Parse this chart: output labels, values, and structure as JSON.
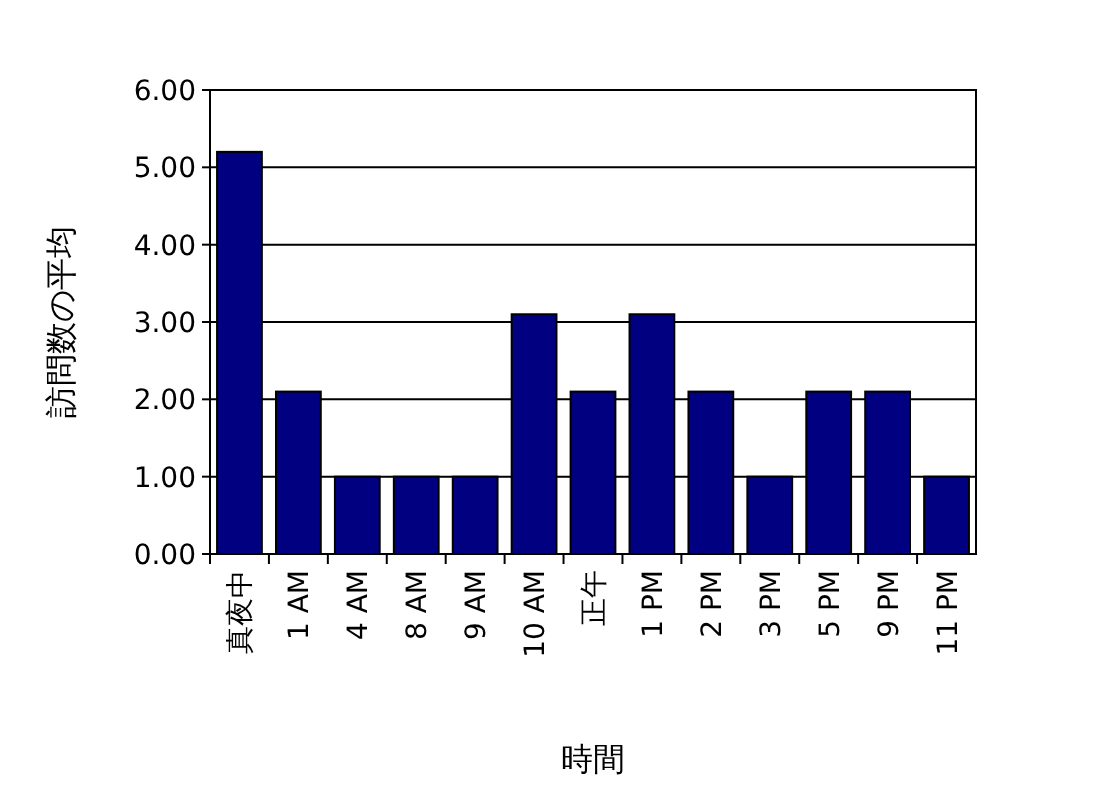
{
  "chart_data": {
    "type": "bar",
    "xlabel": "時間",
    "ylabel": "訪問数の平均",
    "categories": [
      "真夜中",
      "1 AM",
      "4 AM",
      "8 AM",
      "9 AM",
      "10 AM",
      "正午",
      "1 PM",
      "2 PM",
      "3 PM",
      "5 PM",
      "9 PM",
      "11 PM"
    ],
    "values": [
      5.2,
      2.1,
      1.0,
      1.0,
      1.0,
      3.1,
      2.1,
      3.1,
      2.1,
      1.0,
      2.1,
      2.1,
      1.0
    ],
    "color": "#000080",
    "ylim": [
      0,
      6
    ],
    "yticks": [
      {
        "value": 0,
        "label": "0.00"
      },
      {
        "value": 1,
        "label": "1.00"
      },
      {
        "value": 2,
        "label": "2.00"
      },
      {
        "value": 3,
        "label": "3.00"
      },
      {
        "value": 4,
        "label": "4.00"
      },
      {
        "value": 5,
        "label": "5.00"
      },
      {
        "value": 6,
        "label": "6.00"
      }
    ],
    "grid": "y"
  }
}
